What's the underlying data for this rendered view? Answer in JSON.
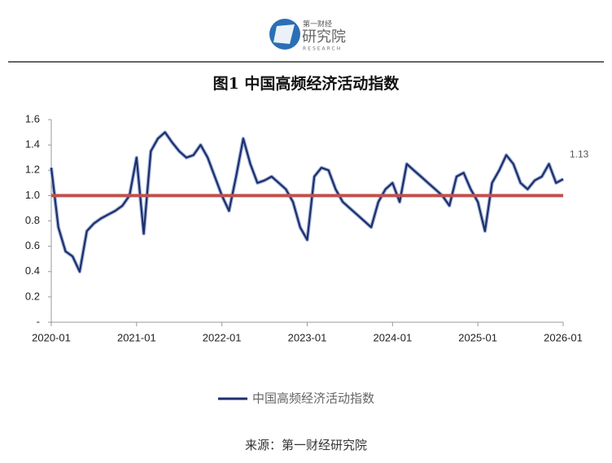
{
  "header": {
    "logo_top": "第一财经",
    "logo_main": "研究院",
    "logo_sub": "RESEARCH"
  },
  "chart_data": {
    "type": "line",
    "title": "图1  中国高频经济活动指数",
    "source": "来源：第一财经研究院",
    "x": [
      "2020-01",
      "2020-02",
      "2020-03",
      "2020-04",
      "2020-05",
      "2020-06",
      "2020-07",
      "2020-08",
      "2020-09",
      "2020-10",
      "2020-11",
      "2020-12",
      "2021-01",
      "2021-02",
      "2021-03",
      "2021-04",
      "2021-05",
      "2021-06",
      "2021-07",
      "2021-08",
      "2021-09",
      "2021-10",
      "2021-11",
      "2021-12",
      "2022-01",
      "2022-02",
      "2022-03",
      "2022-04",
      "2022-05",
      "2022-06",
      "2022-07",
      "2022-08",
      "2022-09",
      "2022-10",
      "2022-11",
      "2022-12",
      "2023-01",
      "2023-02",
      "2023-03",
      "2023-04",
      "2023-05",
      "2023-06",
      "2023-07",
      "2023-08",
      "2023-09",
      "2023-10",
      "2023-11",
      "2023-12",
      "2024-01",
      "2024-02",
      "2024-03",
      "2024-04",
      "2024-05",
      "2024-06",
      "2024-07",
      "2024-08",
      "2024-09",
      "2024-10",
      "2024-11",
      "2024-12",
      "2025-01",
      "2025-02",
      "2025-03",
      "2025-04",
      "2025-05",
      "2025-06",
      "2025-07",
      "2025-08",
      "2025-09",
      "2025-10",
      "2025-11",
      "2025-12",
      "2026-01"
    ],
    "series": [
      {
        "name": "中国高频经济活动指数",
        "color": "#1f2d6b",
        "values": [
          1.22,
          0.75,
          0.56,
          0.52,
          0.4,
          0.72,
          0.78,
          0.82,
          0.85,
          0.88,
          0.92,
          1.0,
          1.3,
          0.7,
          1.35,
          1.45,
          1.5,
          1.42,
          1.35,
          1.3,
          1.32,
          1.4,
          1.3,
          1.15,
          1.0,
          0.88,
          1.15,
          1.45,
          1.25,
          1.1,
          1.12,
          1.15,
          1.1,
          1.05,
          0.95,
          0.75,
          0.65,
          1.15,
          1.22,
          1.2,
          1.05,
          0.95,
          0.9,
          0.85,
          0.8,
          0.75,
          0.95,
          1.05,
          1.1,
          0.95,
          1.25,
          1.2,
          1.15,
          1.1,
          1.05,
          1.0,
          0.92,
          1.15,
          1.18,
          1.05,
          0.95,
          0.72,
          1.1,
          1.2,
          1.32,
          1.25,
          1.1,
          1.05,
          1.12,
          1.15,
          1.25,
          1.1,
          1.13
        ]
      }
    ],
    "end_label": "1.13",
    "reference_line": {
      "value": 1,
      "color": "#c0504d"
    },
    "xticks": [
      "2020-01",
      "2021-01",
      "2022-01",
      "2023-01",
      "2024-01",
      "2025-01",
      "2026-01"
    ],
    "xlim": [
      "2020-01",
      "2026-01"
    ],
    "ylim": [
      0,
      1.6
    ],
    "yticks": [
      {
        "value": 0,
        "label": "-"
      },
      0.2,
      0.4,
      0.6,
      0.8,
      {
        "value": 1,
        "label": "1.0"
      },
      1.2,
      1.4,
      1.6
    ],
    "legend": "bottom"
  }
}
